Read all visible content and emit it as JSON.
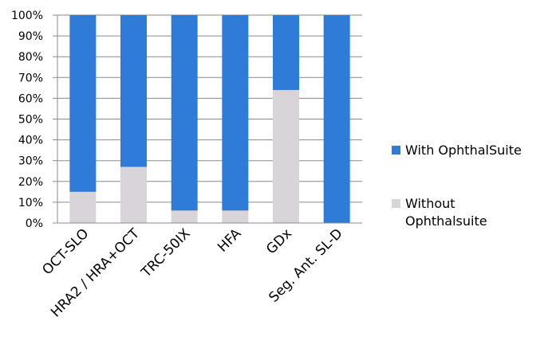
{
  "chart_data": {
    "type": "bar",
    "stacked": true,
    "categories": [
      "OCT-SLO",
      "HRA2 / HRA+OCT",
      "TRC-50IX",
      "HFA",
      "GDx",
      "Seg. Ant. SL-D"
    ],
    "series": [
      {
        "name": "Without Ophthalsuite",
        "color": "#d9d3da",
        "values": [
          15,
          27,
          6,
          6,
          64,
          0
        ]
      },
      {
        "name": "With OphthalSuite",
        "color": "#2e7bd8",
        "values": [
          85,
          73,
          94,
          94,
          36,
          100
        ]
      }
    ],
    "y_tick_labels": [
      "0%",
      "10%",
      "20%",
      "30%",
      "40%",
      "50%",
      "60%",
      "70%",
      "80%",
      "90%",
      "100%"
    ],
    "ylim": [
      0,
      100
    ],
    "grid": true,
    "legend": {
      "position": "right",
      "entries": [
        {
          "lines": [
            "With OphthalSuite"
          ],
          "color": "#2e7bd8"
        },
        {
          "lines": [
            "Without",
            "Ophthalsuite"
          ],
          "color": "#d9d3da"
        }
      ]
    }
  }
}
